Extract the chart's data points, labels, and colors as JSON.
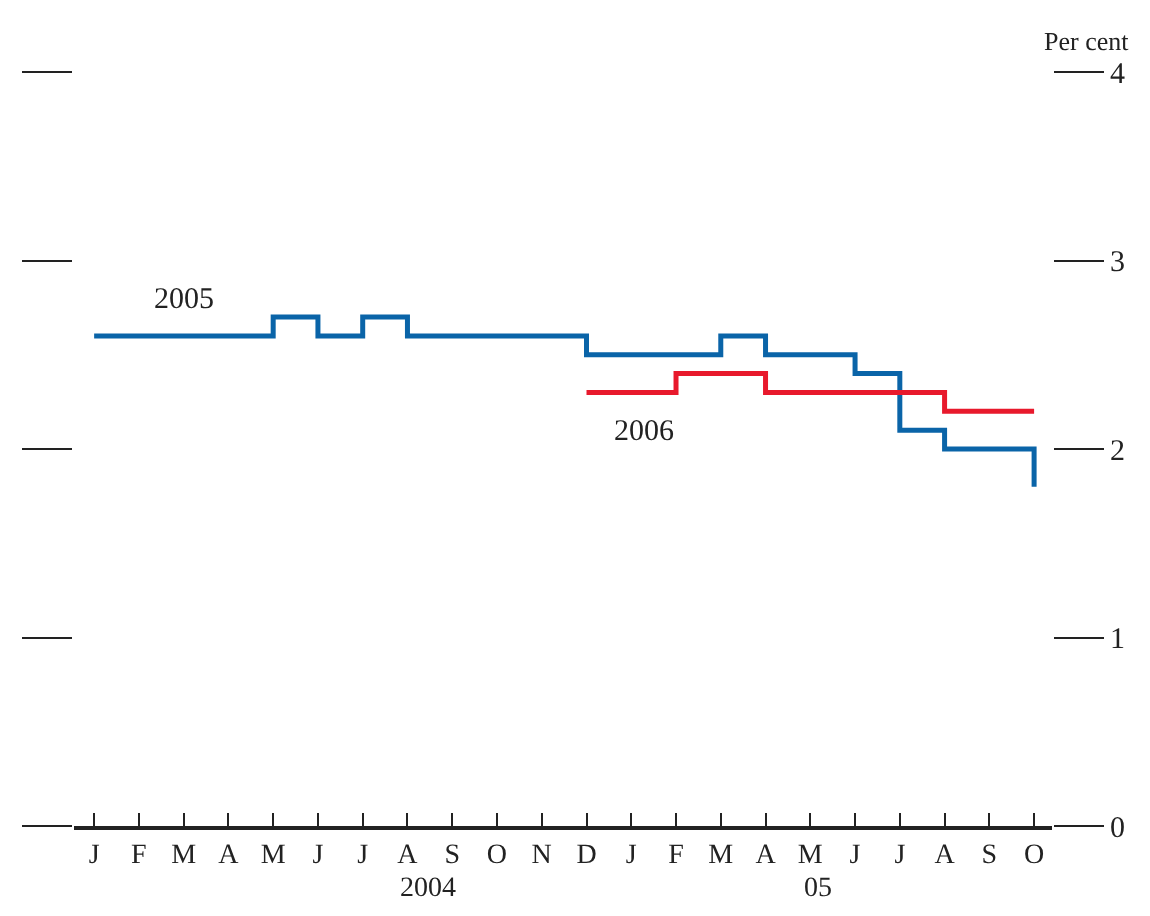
{
  "chart_data": {
    "type": "step",
    "ylabel": "Per cent",
    "categories": [
      "J",
      "F",
      "M",
      "A",
      "M",
      "J",
      "J",
      "A",
      "S",
      "O",
      "N",
      "D",
      "J",
      "F",
      "M",
      "A",
      "M",
      "J",
      "J",
      "A",
      "S",
      "O"
    ],
    "series": [
      {
        "name": "2005",
        "color": "#0a64a8",
        "values": [
          2.6,
          2.6,
          2.6,
          2.6,
          2.7,
          2.6,
          2.7,
          2.6,
          2.6,
          2.6,
          2.6,
          2.5,
          2.5,
          2.5,
          2.6,
          2.5,
          2.5,
          2.4,
          2.1,
          2.0,
          2.0,
          1.8
        ]
      },
      {
        "name": "2006",
        "color": "#e8192c",
        "values": [
          null,
          null,
          null,
          null,
          null,
          null,
          null,
          null,
          null,
          null,
          null,
          2.3,
          2.3,
          2.4,
          2.4,
          2.3,
          2.3,
          2.3,
          2.3,
          2.2,
          2.2,
          2.2
        ]
      }
    ],
    "annotations": [
      "2004",
      "05"
    ],
    "ylim": [
      0,
      4
    ],
    "yticks": [
      0,
      1,
      2,
      3,
      4
    ],
    "legend": false,
    "marker": "none",
    "line_style": "solid"
  }
}
